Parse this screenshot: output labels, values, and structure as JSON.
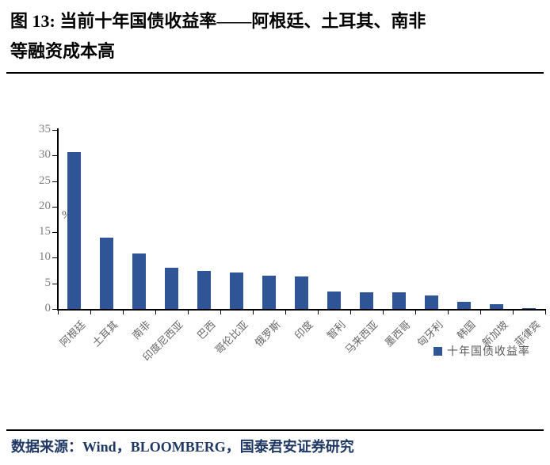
{
  "header": {
    "title_line1": "图 13: 当前十年国债收益率——阿根廷、土耳其、南非",
    "title_line2": "等融资成本高"
  },
  "chart_data": {
    "type": "bar",
    "title": "当前十年国债收益率",
    "unit_label": "%",
    "xlabel": "",
    "ylabel": "%",
    "categories": [
      "阿根廷",
      "土耳其",
      "南非",
      "印度尼西亚",
      "巴西",
      "哥伦比亚",
      "俄罗斯",
      "印度",
      "智利",
      "马来西亚",
      "墨西哥",
      "匈牙利",
      "韩国",
      "新加坡",
      "菲律宾"
    ],
    "series": [
      {
        "name": "十年国债收益率",
        "values": [
          30.6,
          14.0,
          10.8,
          8.1,
          7.5,
          7.2,
          6.5,
          6.3,
          3.4,
          3.2,
          3.2,
          2.6,
          1.4,
          1.0,
          0.1
        ]
      }
    ],
    "ylim": [
      0,
      35
    ],
    "yticks": [
      0,
      5,
      10,
      15,
      20,
      25,
      30,
      35
    ],
    "grid": false,
    "legend_position": "middle-right",
    "bar_color": "#2f5597",
    "axis_color": "#000000",
    "tick_label_color": "#7f7f7f"
  },
  "footer": {
    "source_text": "数据来源：Wind，BLOOMBERG，国泰君安证券研究"
  }
}
